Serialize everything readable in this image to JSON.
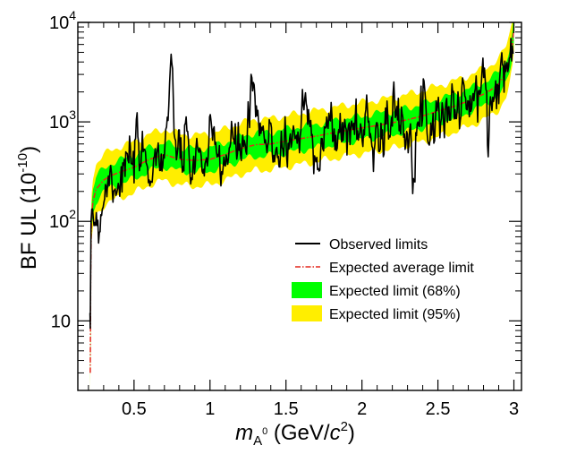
{
  "chart_data": {
    "type": "line",
    "title": "",
    "xlabel": {
      "prefix": "m",
      "subscript": "A",
      "superscript": "0",
      "units_open": " (GeV/",
      "units_c": "c",
      "units_exp": "2",
      "units_close": ")"
    },
    "ylabel": {
      "text": "BF UL (10",
      "exp": "-10",
      "close": ")"
    },
    "xlim": [
      0.13,
      3.05
    ],
    "ylim": [
      2,
      10000
    ],
    "yscale": "log",
    "x_ticks": [
      {
        "value": 0.5,
        "label": "0.5"
      },
      {
        "value": 1.0,
        "label": "1"
      },
      {
        "value": 1.5,
        "label": "1.5"
      },
      {
        "value": 2.0,
        "label": "2"
      },
      {
        "value": 2.5,
        "label": "2.5"
      },
      {
        "value": 3.0,
        "label": "3"
      }
    ],
    "y_ticks": [
      {
        "value": 10,
        "base": "10",
        "exp": ""
      },
      {
        "value": 100,
        "base": "10",
        "exp": "2"
      },
      {
        "value": 1000,
        "base": "10",
        "exp": "3"
      },
      {
        "value": 10000,
        "base": "10",
        "exp": "4"
      }
    ],
    "expected_average": {
      "x": [
        0.212,
        0.215,
        0.22,
        0.23,
        0.25,
        0.3,
        0.35,
        0.4,
        0.5,
        0.6,
        0.7,
        0.8,
        0.9,
        1.0,
        1.1,
        1.2,
        1.3,
        1.4,
        1.5,
        1.6,
        1.7,
        1.8,
        1.9,
        2.0,
        2.1,
        2.2,
        2.3,
        2.4,
        2.5,
        2.6,
        2.7,
        2.8,
        2.85,
        2.9,
        2.95,
        2.97,
        2.99,
        3.0
      ],
      "y": [
        3,
        30,
        110,
        160,
        210,
        260,
        290,
        310,
        350,
        420,
        470,
        420,
        410,
        420,
        470,
        540,
        590,
        600,
        640,
        680,
        720,
        770,
        820,
        870,
        920,
        980,
        1050,
        1150,
        1280,
        1420,
        1620,
        1900,
        2100,
        2400,
        3200,
        4200,
        6000,
        9000
      ]
    },
    "band_68": {
      "lo_factor": 0.76,
      "hi_factor": 1.32
    },
    "band_95": {
      "lo_factor": 0.55,
      "hi_factor": 1.8
    },
    "observed": {
      "seed": 7,
      "x_start": 0.212,
      "x_end": 2.995,
      "points": 560,
      "fluct_sigma": 0.42,
      "bumps": [
        {
          "x": 0.74,
          "factor": 3.2
        },
        {
          "x": 1.28,
          "factor": 2.5
        },
        {
          "x": 1.62,
          "factor": 2.0
        },
        {
          "x": 0.26,
          "factor": 0.5
        }
      ]
    },
    "legend": {
      "position": "lower-right",
      "entries": [
        {
          "label": "Observed limits",
          "style": "line",
          "color": "#000000"
        },
        {
          "label": "Expected average limit",
          "style": "dashdot",
          "color": "#e3271b"
        },
        {
          "label": "Expected limit (68%)",
          "style": "box",
          "color": "#00ff00"
        },
        {
          "label": "Expected limit (95%)",
          "style": "box",
          "color": "#ffee00"
        }
      ]
    },
    "colors": {
      "observed": "#000000",
      "expected": "#e3271b",
      "band68": "#00ff00",
      "band95": "#ffee00",
      "axis": "#000000",
      "background": "#ffffff"
    }
  }
}
